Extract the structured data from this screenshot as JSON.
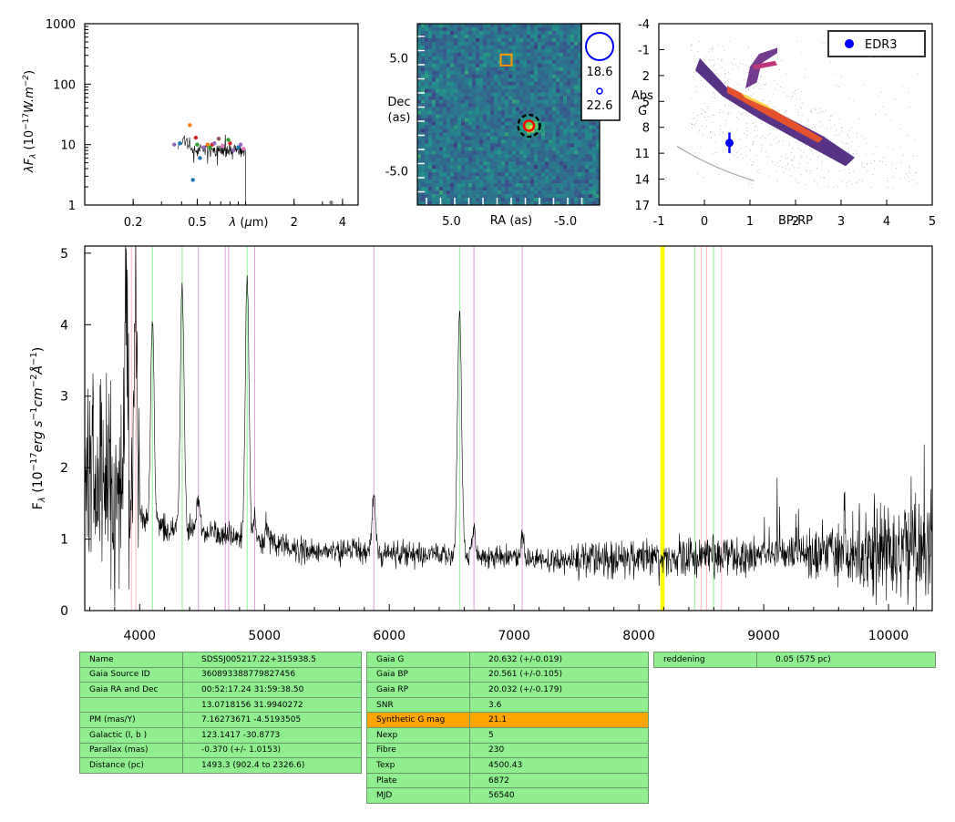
{
  "chart_data": [
    {
      "type": "scatter",
      "ylabel": "λF_λ (10^-17 W.m^-2)",
      "xlabel": "λ (μm)",
      "xscale": "log",
      "yscale": "log",
      "xlim": [
        0.1,
        5.0
      ],
      "ylim": [
        1,
        1000
      ],
      "xticks": [
        {
          "v": 0.2,
          "t": "0.2"
        },
        {
          "v": 0.5,
          "t": "0.5"
        },
        {
          "v": 2,
          "t": "2"
        },
        {
          "v": 4,
          "t": "4"
        }
      ],
      "yticks": [
        {
          "v": 1,
          "t": "1"
        },
        {
          "v": 10,
          "t": "10"
        },
        {
          "v": 100,
          "t": "100"
        },
        {
          "v": 1000,
          "t": "1000"
        }
      ],
      "points": [
        {
          "x": 0.36,
          "y": 10,
          "c": "#9467bd"
        },
        {
          "x": 0.39,
          "y": 10.5,
          "c": "#1f77b4"
        },
        {
          "x": 0.45,
          "y": 21,
          "c": "#ff7f0e"
        },
        {
          "x": 0.47,
          "y": 2.6,
          "c": "#1f77b4"
        },
        {
          "x": 0.49,
          "y": 13,
          "c": "#d62728"
        },
        {
          "x": 0.5,
          "y": 10,
          "c": "#2ca02c"
        },
        {
          "x": 0.52,
          "y": 6,
          "c": "#1f77b4"
        },
        {
          "x": 0.55,
          "y": 9,
          "c": "#9467bd"
        },
        {
          "x": 0.58,
          "y": 10,
          "c": "#ff7f0e"
        },
        {
          "x": 0.6,
          "y": 9,
          "c": "#2ca02c"
        },
        {
          "x": 0.62,
          "y": 10,
          "c": "#d62728"
        },
        {
          "x": 0.64,
          "y": 10.5,
          "c": "#9467bd"
        },
        {
          "x": 0.68,
          "y": 12.5,
          "c": "#8c564b"
        },
        {
          "x": 0.72,
          "y": 9.5,
          "c": "#e377c2"
        },
        {
          "x": 0.78,
          "y": 12,
          "c": "#2ca02c"
        },
        {
          "x": 0.8,
          "y": 10.5,
          "c": "#d62728"
        },
        {
          "x": 0.84,
          "y": 8,
          "c": "#9467bd"
        },
        {
          "x": 0.9,
          "y": 9,
          "c": "#1f77b4"
        },
        {
          "x": 0.93,
          "y": 10,
          "c": "#9467bd"
        },
        {
          "x": 0.97,
          "y": 8.5,
          "c": "#e377c2"
        },
        {
          "x": 3.4,
          "y": 1.1,
          "c": "#7f7f7f"
        }
      ]
    },
    {
      "type": "heatmap",
      "xlabel": "RA (as)",
      "ylabel": "Dec (as)",
      "xlim": [
        8,
        -8
      ],
      "ylim": [
        -8,
        8
      ],
      "xticks": [
        {
          "v": 5,
          "t": "5.0"
        },
        {
          "v": -5,
          "t": "-5.0"
        }
      ],
      "yticks": [
        {
          "v": 5,
          "t": "5.0"
        },
        {
          "v": -5,
          "t": "-5.0"
        }
      ],
      "source": {
        "x": -1.8,
        "y": -1.0
      },
      "marker": {
        "x": 0.2,
        "y": 4.8
      },
      "legend": [
        "18.6",
        "22.6"
      ]
    },
    {
      "type": "scatter",
      "xlabel": "BP-RP",
      "ylabel": "Abs G",
      "xlim": [
        -1,
        5
      ],
      "ylim": [
        17,
        -4
      ],
      "xticks": [
        -1,
        0,
        1,
        2,
        3,
        4,
        5
      ],
      "yticks": [
        -4,
        -1,
        2,
        5,
        8,
        11,
        14,
        17
      ],
      "legend": "EDR3",
      "point": {
        "x": 0.55,
        "y": 9.8,
        "yerr": 1.2
      }
    },
    {
      "type": "line",
      "ylabel": "F_λ (10^-17 erg s^-1 cm^-2 Å^-1)",
      "xlim": [
        3560,
        10350
      ],
      "ylim": [
        0,
        5.1
      ],
      "xticks": [
        4000,
        5000,
        6000,
        7000,
        8000,
        9000,
        10000
      ],
      "yticks": [
        0,
        1,
        2,
        3,
        4,
        5
      ],
      "vlines": [
        {
          "x": 3934,
          "c": "#ffb6c1"
        },
        {
          "x": 3969,
          "c": "#ffb6c1"
        },
        {
          "x": 4102,
          "c": "#90ee90"
        },
        {
          "x": 4341,
          "c": "#90ee90"
        },
        {
          "x": 4471,
          "c": "#dda0dd"
        },
        {
          "x": 4686,
          "c": "#dda0dd"
        },
        {
          "x": 4713,
          "c": "#dda0dd"
        },
        {
          "x": 4861,
          "c": "#90ee90"
        },
        {
          "x": 4922,
          "c": "#dda0dd"
        },
        {
          "x": 5876,
          "c": "#dda0dd"
        },
        {
          "x": 6563,
          "c": "#90ee90"
        },
        {
          "x": 6678,
          "c": "#dda0dd"
        },
        {
          "x": 7065,
          "c": "#dda0dd"
        },
        {
          "x": 8183,
          "c": "#ffff00",
          "w": 3
        },
        {
          "x": 8195,
          "c": "#ffff00",
          "w": 3
        },
        {
          "x": 8446,
          "c": "#90ee90"
        },
        {
          "x": 8498,
          "c": "#ffb6c1"
        },
        {
          "x": 8542,
          "c": "#ffb6c1"
        },
        {
          "x": 8598,
          "c": "#90ee90"
        },
        {
          "x": 8662,
          "c": "#ffb6c1"
        }
      ],
      "emission": [
        {
          "x": 3889,
          "h": 3.3,
          "w": 12
        },
        {
          "x": 3970,
          "h": 3.2,
          "w": 14
        },
        {
          "x": 4102,
          "h": 2.9,
          "w": 14
        },
        {
          "x": 4341,
          "h": 3.4,
          "w": 15
        },
        {
          "x": 4471,
          "h": 0.5,
          "w": 12
        },
        {
          "x": 4861,
          "h": 3.6,
          "w": 15
        },
        {
          "x": 4922,
          "h": 0.35,
          "w": 10
        },
        {
          "x": 5015,
          "h": 0.3,
          "w": 10
        },
        {
          "x": 5876,
          "h": 0.8,
          "w": 14
        },
        {
          "x": 6563,
          "h": 3.5,
          "w": 16
        },
        {
          "x": 6678,
          "h": 0.45,
          "w": 14
        },
        {
          "x": 7065,
          "h": 0.35,
          "w": 14
        }
      ]
    }
  ],
  "tables": {
    "left": [
      [
        "Name",
        "SDSSJ005217.22+315938.5"
      ],
      [
        "Gaia Source ID",
        "360893388779827456"
      ],
      [
        "Gaia RA and Dec",
        "00:52:17.24    31:59:38.50"
      ],
      [
        "",
        "13.0718156    31.9940272"
      ],
      [
        "PM (mas/Y)",
        "7.16273671    -4.5193505"
      ],
      [
        "Galactic (l, b )",
        "123.1417    -30.8773"
      ],
      [
        "Parallax (mas)",
        "-0.370 (+/- 1.0153)"
      ],
      [
        "Distance (pc)",
        "1493.3 (902.4 to 2326.6)"
      ]
    ],
    "middle": [
      [
        "Gaia G",
        "20.632 (+/-0.019)"
      ],
      [
        "Gaia BP",
        "20.561 (+/-0.105)"
      ],
      [
        "Gaia RP",
        "20.032 (+/-0.179)"
      ],
      [
        "SNR",
        "3.6"
      ],
      [
        "Synthetic G mag",
        "21.1"
      ],
      [
        "Nexp",
        "5"
      ],
      [
        "Fibre",
        "230"
      ],
      [
        "Texp",
        "4500.43"
      ],
      [
        "Plate",
        "6872"
      ],
      [
        "MJD",
        "56540"
      ]
    ],
    "middle_highlight": 4,
    "right": [
      [
        "reddening",
        "0.05 (575 pc)"
      ]
    ]
  }
}
